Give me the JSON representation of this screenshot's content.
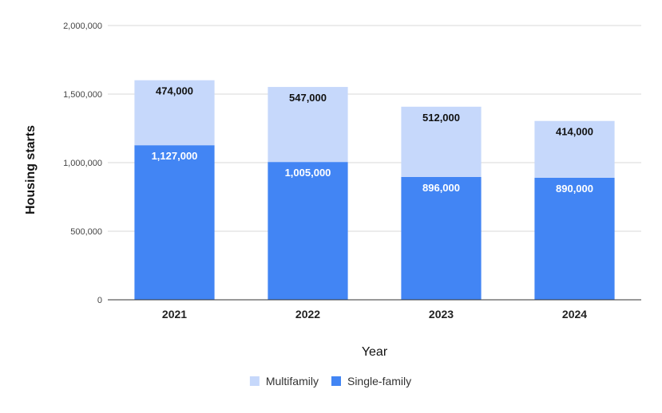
{
  "chart_data": {
    "type": "bar",
    "stacked": true,
    "title": "",
    "xlabel": "Year",
    "ylabel": "Housing starts",
    "categories": [
      "2021",
      "2022",
      "2023",
      "2024"
    ],
    "series": [
      {
        "name": "Single-family",
        "color": "#4285f4",
        "label_color": "#ffffff",
        "values": [
          1127000,
          1005000,
          896000,
          890000
        ],
        "labels": [
          "1,127,000",
          "1,005,000",
          "896,000",
          "890,000"
        ]
      },
      {
        "name": "Multifamily",
        "color": "#c6d8fb",
        "label_color": "#111111",
        "values": [
          474000,
          547000,
          512000,
          414000
        ],
        "labels": [
          "474,000",
          "547,000",
          "512,000",
          "414,000"
        ]
      }
    ],
    "ylim": [
      0,
      2000000
    ],
    "yticks": [
      0,
      500000,
      1000000,
      1500000,
      2000000
    ],
    "ytick_labels": [
      "0",
      "500,000",
      "1,000,000",
      "1,500,000",
      "2,000,000"
    ],
    "grid": true,
    "legend": {
      "position": "bottom",
      "items": [
        {
          "name": "Multifamily",
          "color": "#c6d8fb"
        },
        {
          "name": "Single-family",
          "color": "#4285f4"
        }
      ]
    }
  }
}
